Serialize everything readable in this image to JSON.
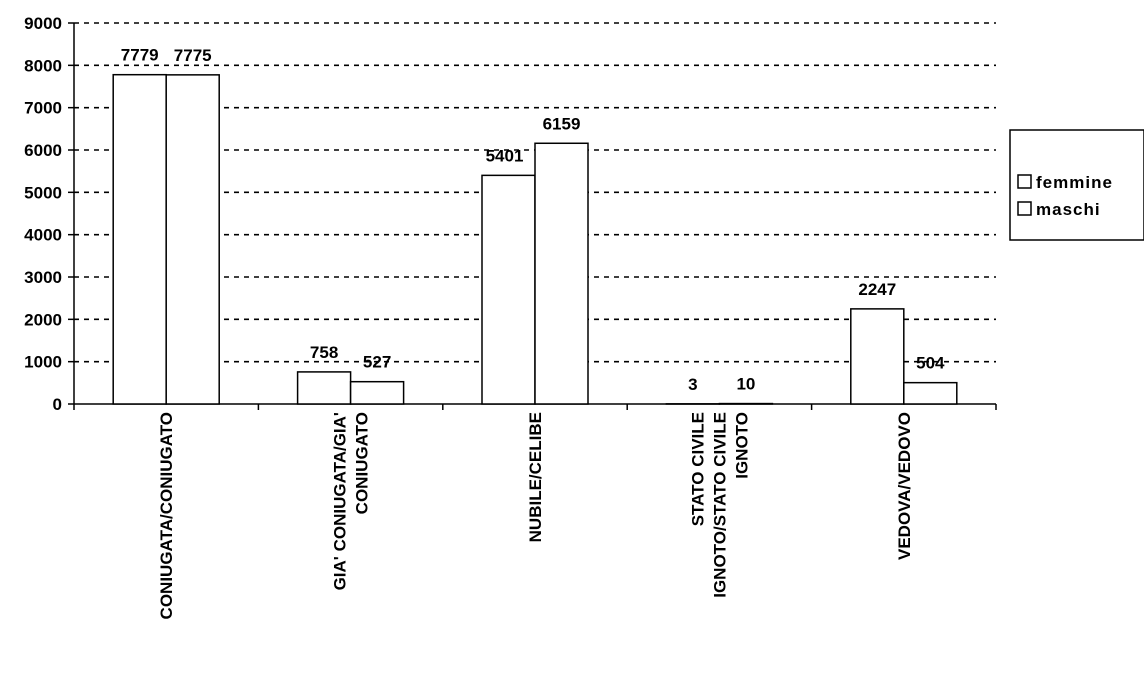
{
  "chart_data": {
    "type": "bar",
    "categories": [
      [
        "CONIUGATA/CONIUGATO"
      ],
      [
        "GIA' CONIUGATA/GIA'",
        "CONIUGATO"
      ],
      [
        "NUBILE/CELIBE"
      ],
      [
        "STATO CIVILE",
        "IGNOTO/STATO CIVILE",
        "IGNOTO"
      ],
      [
        "VEDOVA/VEDOVO"
      ]
    ],
    "series": [
      {
        "name": "femmine",
        "values": [
          7779,
          758,
          5401,
          3,
          2247
        ]
      },
      {
        "name": "maschi",
        "values": [
          7775,
          527,
          6159,
          10,
          504
        ]
      }
    ],
    "yticks": [
      0,
      1000,
      2000,
      3000,
      4000,
      5000,
      6000,
      7000,
      8000,
      9000
    ],
    "ylim": [
      0,
      9000
    ],
    "grid": true,
    "legend_position": "right",
    "bar_fill": "#ffffff",
    "bar_stroke": "#000000",
    "grid_color": "#000000"
  }
}
